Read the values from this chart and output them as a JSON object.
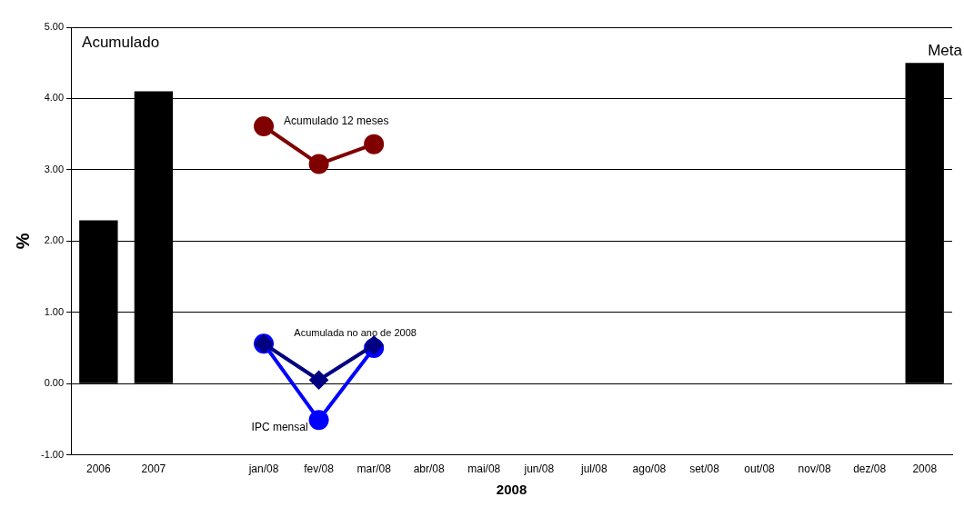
{
  "chart_data": {
    "type": "bar",
    "xlabel": "2008",
    "ylabel": "%",
    "categories": [
      "2006",
      "2007",
      null,
      "jan/08",
      "fev/08",
      "mar/08",
      "abr/08",
      "mai/08",
      "jun/08",
      "jul/08",
      "ago/08",
      "set/08",
      "out/08",
      "nov/08",
      "dez/08",
      "2008"
    ],
    "series": [
      {
        "color": "#000000",
        "values": [
          2.29,
          4.1,
          null,
          null,
          null,
          null,
          null,
          null,
          null,
          null,
          null,
          null,
          null,
          null,
          null,
          4.5
        ]
      },
      {
        "type": "line",
        "name": "Acumulado 12 meses",
        "color": "#800000",
        "marker": "circle",
        "values": [
          null,
          null,
          null,
          3.61,
          3.08,
          3.36,
          null,
          null,
          null,
          null,
          null,
          null,
          null,
          null,
          null,
          null
        ]
      },
      {
        "type": "line",
        "name": "IPC mensal",
        "color": "#0000ff",
        "marker": "circle",
        "values": [
          null,
          null,
          null,
          0.56,
          -0.51,
          0.5,
          null,
          null,
          null,
          null,
          null,
          null,
          null,
          null,
          null,
          null
        ]
      },
      {
        "type": "line",
        "name": "Acumulada no ano de 2008",
        "color": "#000080",
        "marker": "diamond",
        "values": [
          null,
          null,
          null,
          0.56,
          0.05,
          0.54,
          null,
          null,
          null,
          null,
          null,
          null,
          null,
          null,
          null,
          null
        ]
      }
    ],
    "annotations": [
      "Acumulado",
      {
        "text": "Meta",
        "x": "2008",
        "y": 4.5
      }
    ],
    "ylim": [
      -1,
      5
    ],
    "yticks": [
      {
        "value": -1,
        "label": "-1.00"
      },
      {
        "value": 0,
        "label": "0.00"
      },
      {
        "value": 1,
        "label": "1.00"
      },
      {
        "value": 2,
        "label": "2.00"
      },
      {
        "value": 3,
        "label": "3.00"
      },
      {
        "value": 4,
        "label": "4.00"
      },
      {
        "value": 5,
        "label": "5.00"
      }
    ],
    "grid": "y",
    "legend": false
  }
}
